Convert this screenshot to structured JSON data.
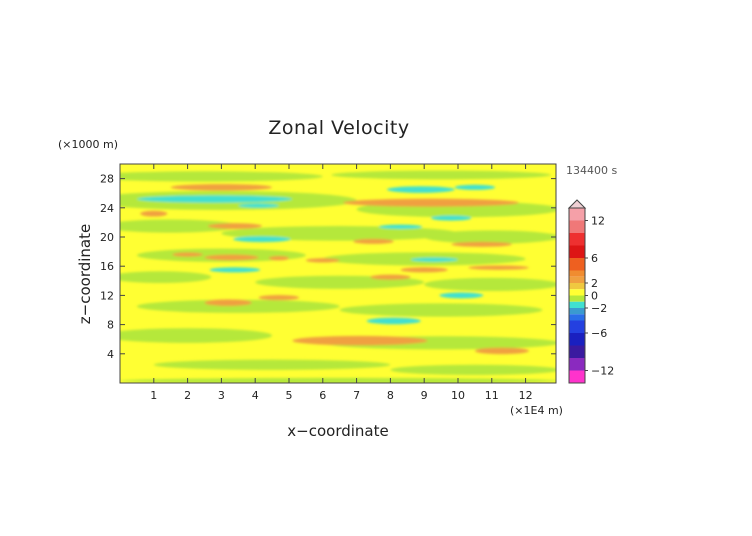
{
  "chart_data": {
    "type": "heatmap",
    "title": "Zonal Velocity",
    "xlabel": "x−coordinate",
    "ylabel": "z−coordinate",
    "x_unit": "(×1E4 m)",
    "y_unit": "(×1000 m)",
    "time_label": "134400 s",
    "xlim": [
      0,
      12.9
    ],
    "ylim": [
      0,
      30
    ],
    "x_ticks": [
      1,
      2,
      3,
      4,
      5,
      6,
      7,
      8,
      9,
      10,
      11,
      12
    ],
    "y_ticks": [
      4,
      8,
      12,
      16,
      20,
      24,
      28
    ],
    "background_level": 0,
    "colorbar": {
      "min": -14,
      "max": 14,
      "ticks": [
        12,
        6,
        2,
        0,
        -2,
        -6,
        -12
      ],
      "levels": [
        {
          "from": 12,
          "to": 14,
          "color": "#f5a0a8"
        },
        {
          "from": 10,
          "to": 12,
          "color": "#f07878"
        },
        {
          "from": 8,
          "to": 10,
          "color": "#ee3030"
        },
        {
          "from": 6,
          "to": 8,
          "color": "#dd1515"
        },
        {
          "from": 4,
          "to": 6,
          "color": "#ee6020"
        },
        {
          "from": 3,
          "to": 4,
          "color": "#f08c30"
        },
        {
          "from": 2,
          "to": 3,
          "color": "#f0a040"
        },
        {
          "from": 1,
          "to": 2,
          "color": "#f0c840"
        },
        {
          "from": 0,
          "to": 1,
          "color": "#ffff33"
        },
        {
          "from": -1,
          "to": 0,
          "color": "#b5e83a"
        },
        {
          "from": -2,
          "to": -1,
          "color": "#40e0d0"
        },
        {
          "from": -3,
          "to": -2,
          "color": "#3a9ad0"
        },
        {
          "from": -4,
          "to": -3,
          "color": "#2a6ee8"
        },
        {
          "from": -6,
          "to": -4,
          "color": "#2440e0"
        },
        {
          "from": -8,
          "to": -6,
          "color": "#1a20c0"
        },
        {
          "from": -10,
          "to": -8,
          "color": "#3a1aa0"
        },
        {
          "from": -12,
          "to": -10,
          "color": "#8a2abf"
        },
        {
          "from": -14,
          "to": -12,
          "color": "#ff33cc"
        }
      ]
    },
    "regions": [
      {
        "level": -0.5,
        "xc": 2.5,
        "zc": 28.3,
        "w": 7.0,
        "h": 1.4
      },
      {
        "level": -0.5,
        "xc": 9.5,
        "zc": 28.5,
        "w": 6.5,
        "h": 1.2
      },
      {
        "level": -0.5,
        "xc": 3.0,
        "zc": 25.0,
        "w": 8.0,
        "h": 2.6
      },
      {
        "level": -0.5,
        "xc": 10.0,
        "zc": 23.8,
        "w": 6.0,
        "h": 2.2
      },
      {
        "level": -0.5,
        "xc": 1.5,
        "zc": 21.5,
        "w": 4.0,
        "h": 1.8
      },
      {
        "level": -0.5,
        "xc": 6.5,
        "zc": 20.5,
        "w": 7.0,
        "h": 2.0
      },
      {
        "level": -0.5,
        "xc": 11.0,
        "zc": 20.0,
        "w": 4.0,
        "h": 1.8
      },
      {
        "level": -0.5,
        "xc": 3.0,
        "zc": 17.5,
        "w": 5.0,
        "h": 1.8
      },
      {
        "level": -0.5,
        "xc": 9.0,
        "zc": 17.0,
        "w": 6.0,
        "h": 1.8
      },
      {
        "level": -0.5,
        "xc": 1.2,
        "zc": 14.5,
        "w": 3.0,
        "h": 1.6
      },
      {
        "level": -0.5,
        "xc": 6.5,
        "zc": 13.8,
        "w": 5.0,
        "h": 1.8
      },
      {
        "level": -0.5,
        "xc": 11.0,
        "zc": 13.5,
        "w": 4.0,
        "h": 1.8
      },
      {
        "level": -0.5,
        "xc": 3.5,
        "zc": 10.5,
        "w": 6.0,
        "h": 1.8
      },
      {
        "level": -0.5,
        "xc": 9.5,
        "zc": 10.0,
        "w": 6.0,
        "h": 1.8
      },
      {
        "level": -0.5,
        "xc": 2.0,
        "zc": 6.5,
        "w": 5.0,
        "h": 2.0
      },
      {
        "level": -0.5,
        "xc": 9.5,
        "zc": 5.5,
        "w": 7.0,
        "h": 1.8
      },
      {
        "level": -0.5,
        "xc": 4.5,
        "zc": 2.5,
        "w": 7.0,
        "h": 1.4
      },
      {
        "level": -0.5,
        "xc": 10.5,
        "zc": 1.8,
        "w": 5.0,
        "h": 1.4
      },
      {
        "level": -0.5,
        "xc": 6.5,
        "zc": 0.3,
        "w": 13.0,
        "h": 0.8
      },
      {
        "level": 2.5,
        "xc": 3.0,
        "zc": 26.8,
        "w": 3.0,
        "h": 0.9
      },
      {
        "level": 2.5,
        "xc": 9.2,
        "zc": 24.7,
        "w": 5.2,
        "h": 1.1
      },
      {
        "level": 2.5,
        "xc": 1.0,
        "zc": 23.2,
        "w": 0.8,
        "h": 0.8
      },
      {
        "level": 2.5,
        "xc": 3.4,
        "zc": 21.5,
        "w": 1.6,
        "h": 0.8
      },
      {
        "level": 2.5,
        "xc": 7.5,
        "zc": 19.4,
        "w": 1.2,
        "h": 0.7
      },
      {
        "level": 2.5,
        "xc": 10.7,
        "zc": 19.0,
        "w": 1.8,
        "h": 0.7
      },
      {
        "level": 2.5,
        "xc": 2.0,
        "zc": 17.6,
        "w": 0.9,
        "h": 0.6
      },
      {
        "level": 2.5,
        "xc": 3.3,
        "zc": 17.2,
        "w": 1.6,
        "h": 0.8
      },
      {
        "level": 2.5,
        "xc": 4.7,
        "zc": 17.1,
        "w": 0.6,
        "h": 0.6
      },
      {
        "level": 2.5,
        "xc": 6.0,
        "zc": 16.8,
        "w": 1.0,
        "h": 0.6
      },
      {
        "level": 2.5,
        "xc": 9.0,
        "zc": 15.5,
        "w": 1.4,
        "h": 0.7
      },
      {
        "level": 2.5,
        "xc": 11.2,
        "zc": 15.8,
        "w": 1.8,
        "h": 0.6
      },
      {
        "level": 2.5,
        "xc": 8.0,
        "zc": 14.5,
        "w": 1.2,
        "h": 0.7
      },
      {
        "level": 2.5,
        "xc": 3.2,
        "zc": 11.0,
        "w": 1.4,
        "h": 0.9
      },
      {
        "level": 2.5,
        "xc": 4.7,
        "zc": 11.7,
        "w": 1.2,
        "h": 0.7
      },
      {
        "level": 2.5,
        "xc": 7.1,
        "zc": 5.8,
        "w": 4.0,
        "h": 1.3
      },
      {
        "level": 2.5,
        "xc": 11.3,
        "zc": 4.4,
        "w": 1.6,
        "h": 0.9
      },
      {
        "level": -1.5,
        "xc": 2.8,
        "zc": 25.2,
        "w": 4.6,
        "h": 1.0
      },
      {
        "level": -1.5,
        "xc": 8.9,
        "zc": 26.5,
        "w": 2.0,
        "h": 0.9
      },
      {
        "level": -1.5,
        "xc": 10.5,
        "zc": 26.8,
        "w": 1.2,
        "h": 0.7
      },
      {
        "level": -1.5,
        "xc": 4.1,
        "zc": 24.3,
        "w": 1.2,
        "h": 0.6
      },
      {
        "level": -1.5,
        "xc": 9.8,
        "zc": 22.6,
        "w": 1.2,
        "h": 0.7
      },
      {
        "level": -1.5,
        "xc": 8.3,
        "zc": 21.4,
        "w": 1.3,
        "h": 0.6
      },
      {
        "level": -1.5,
        "xc": 4.2,
        "zc": 19.7,
        "w": 1.7,
        "h": 0.8
      },
      {
        "level": -1.5,
        "xc": 9.3,
        "zc": 16.9,
        "w": 1.4,
        "h": 0.6
      },
      {
        "level": -1.5,
        "xc": 3.4,
        "zc": 15.5,
        "w": 1.5,
        "h": 0.7
      },
      {
        "level": -1.5,
        "xc": 10.1,
        "zc": 12.0,
        "w": 1.3,
        "h": 0.8
      },
      {
        "level": -1.5,
        "xc": 8.1,
        "zc": 8.5,
        "w": 1.6,
        "h": 0.9
      }
    ]
  }
}
